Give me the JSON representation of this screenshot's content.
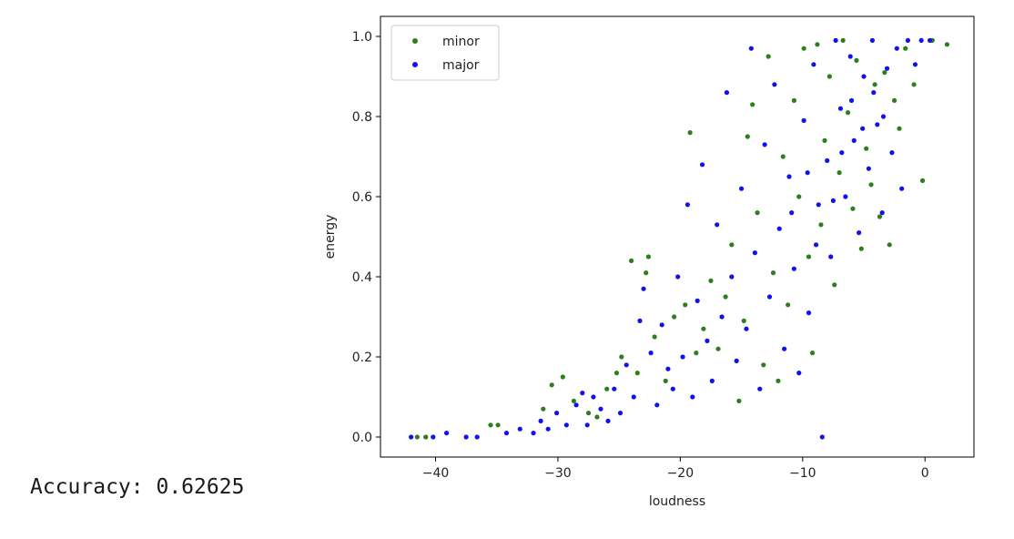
{
  "output": {
    "accuracy_label": "Accuracy:",
    "accuracy_value": "0.62625"
  },
  "chart_data": {
    "type": "scatter",
    "title": "",
    "xlabel": "loudness",
    "ylabel": "energy",
    "xlim": [
      -44.5,
      4
    ],
    "ylim": [
      -0.05,
      1.05
    ],
    "xticks": [
      -40,
      -30,
      -20,
      -10,
      0
    ],
    "xtick_labels": [
      "−40",
      "−30",
      "−20",
      "−10",
      "0"
    ],
    "yticks": [
      0.0,
      0.2,
      0.4,
      0.6,
      0.8,
      1.0
    ],
    "ytick_labels": [
      "0.0",
      "0.2",
      "0.4",
      "0.6",
      "0.8",
      "1.0"
    ],
    "grid": false,
    "legend_position": "upper-left",
    "series": [
      {
        "name": "minor",
        "color": "#2e7d1e",
        "points": [
          [
            -41.5,
            0.0
          ],
          [
            -40.8,
            0.0
          ],
          [
            -35.5,
            0.03
          ],
          [
            -34.9,
            0.03
          ],
          [
            -31.2,
            0.07
          ],
          [
            -30.5,
            0.13
          ],
          [
            -29.6,
            0.15
          ],
          [
            -28.7,
            0.09
          ],
          [
            -27.5,
            0.06
          ],
          [
            -26.8,
            0.05
          ],
          [
            -26.0,
            0.12
          ],
          [
            -25.2,
            0.16
          ],
          [
            -24.8,
            0.2
          ],
          [
            -24.0,
            0.44
          ],
          [
            -23.5,
            0.16
          ],
          [
            -22.8,
            0.41
          ],
          [
            -22.6,
            0.45
          ],
          [
            -22.1,
            0.25
          ],
          [
            -21.2,
            0.14
          ],
          [
            -20.5,
            0.3
          ],
          [
            -19.6,
            0.33
          ],
          [
            -19.2,
            0.76
          ],
          [
            -18.7,
            0.21
          ],
          [
            -18.1,
            0.27
          ],
          [
            -17.5,
            0.39
          ],
          [
            -16.9,
            0.22
          ],
          [
            -16.3,
            0.35
          ],
          [
            -15.8,
            0.48
          ],
          [
            -15.2,
            0.09
          ],
          [
            -14.8,
            0.29
          ],
          [
            -14.5,
            0.75
          ],
          [
            -14.1,
            0.83
          ],
          [
            -13.7,
            0.56
          ],
          [
            -13.2,
            0.18
          ],
          [
            -12.8,
            0.95
          ],
          [
            -12.4,
            0.41
          ],
          [
            -12.0,
            0.14
          ],
          [
            -11.6,
            0.7
          ],
          [
            -11.2,
            0.33
          ],
          [
            -10.7,
            0.84
          ],
          [
            -10.3,
            0.6
          ],
          [
            -9.9,
            0.97
          ],
          [
            -9.5,
            0.45
          ],
          [
            -9.2,
            0.21
          ],
          [
            -8.8,
            0.98
          ],
          [
            -8.5,
            0.53
          ],
          [
            -8.2,
            0.74
          ],
          [
            -7.8,
            0.9
          ],
          [
            -7.4,
            0.38
          ],
          [
            -7.0,
            0.66
          ],
          [
            -6.7,
            0.99
          ],
          [
            -6.3,
            0.81
          ],
          [
            -5.9,
            0.57
          ],
          [
            -5.6,
            0.94
          ],
          [
            -5.2,
            0.47
          ],
          [
            -4.8,
            0.72
          ],
          [
            -4.4,
            0.63
          ],
          [
            -4.1,
            0.88
          ],
          [
            -3.7,
            0.55
          ],
          [
            -3.3,
            0.91
          ],
          [
            -2.9,
            0.48
          ],
          [
            -2.5,
            0.84
          ],
          [
            -2.1,
            0.77
          ],
          [
            -1.6,
            0.97
          ],
          [
            -0.9,
            0.88
          ],
          [
            -0.2,
            0.64
          ],
          [
            0.6,
            0.99
          ],
          [
            1.8,
            0.98
          ]
        ]
      },
      {
        "name": "major",
        "color": "#1111ee",
        "points": [
          [
            -42.0,
            0.0
          ],
          [
            -40.2,
            0.0
          ],
          [
            -39.1,
            0.01
          ],
          [
            -37.5,
            0.0
          ],
          [
            -36.6,
            0.0
          ],
          [
            -34.2,
            0.01
          ],
          [
            -33.1,
            0.02
          ],
          [
            -32.0,
            0.01
          ],
          [
            -31.4,
            0.04
          ],
          [
            -30.8,
            0.02
          ],
          [
            -30.1,
            0.06
          ],
          [
            -29.3,
            0.03
          ],
          [
            -28.5,
            0.08
          ],
          [
            -28.0,
            0.11
          ],
          [
            -27.6,
            0.03
          ],
          [
            -27.1,
            0.1
          ],
          [
            -26.5,
            0.07
          ],
          [
            -25.9,
            0.04
          ],
          [
            -25.4,
            0.12
          ],
          [
            -24.9,
            0.06
          ],
          [
            -24.4,
            0.18
          ],
          [
            -23.8,
            0.1
          ],
          [
            -23.3,
            0.29
          ],
          [
            -23.0,
            0.37
          ],
          [
            -22.4,
            0.21
          ],
          [
            -21.9,
            0.08
          ],
          [
            -21.5,
            0.28
          ],
          [
            -21.0,
            0.17
          ],
          [
            -20.6,
            0.12
          ],
          [
            -20.2,
            0.4
          ],
          [
            -19.8,
            0.2
          ],
          [
            -19.4,
            0.58
          ],
          [
            -19.0,
            0.1
          ],
          [
            -18.6,
            0.34
          ],
          [
            -18.2,
            0.68
          ],
          [
            -17.8,
            0.24
          ],
          [
            -17.4,
            0.14
          ],
          [
            -17.0,
            0.53
          ],
          [
            -16.6,
            0.3
          ],
          [
            -16.2,
            0.86
          ],
          [
            -15.8,
            0.4
          ],
          [
            -15.4,
            0.19
          ],
          [
            -15.0,
            0.62
          ],
          [
            -14.6,
            0.27
          ],
          [
            -14.2,
            0.97
          ],
          [
            -13.9,
            0.46
          ],
          [
            -13.5,
            0.12
          ],
          [
            -13.1,
            0.73
          ],
          [
            -12.7,
            0.35
          ],
          [
            -12.3,
            0.88
          ],
          [
            -11.9,
            0.52
          ],
          [
            -11.5,
            0.22
          ],
          [
            -11.1,
            0.65
          ],
          [
            -10.7,
            0.42
          ],
          [
            -10.3,
            0.16
          ],
          [
            -9.9,
            0.79
          ],
          [
            -9.5,
            0.31
          ],
          [
            -9.1,
            0.93
          ],
          [
            -8.7,
            0.58
          ],
          [
            -8.4,
            0.0
          ],
          [
            -8.0,
            0.69
          ],
          [
            -7.7,
            0.45
          ],
          [
            -7.3,
            0.99
          ],
          [
            -6.9,
            0.82
          ],
          [
            -6.5,
            0.6
          ],
          [
            -6.1,
            0.95
          ],
          [
            -5.8,
            0.74
          ],
          [
            -5.4,
            0.51
          ],
          [
            -5.0,
            0.9
          ],
          [
            -4.6,
            0.67
          ],
          [
            -4.3,
            0.99
          ],
          [
            -3.9,
            0.78
          ],
          [
            -3.5,
            0.56
          ],
          [
            -3.1,
            0.92
          ],
          [
            -2.7,
            0.71
          ],
          [
            -2.3,
            0.97
          ],
          [
            -1.9,
            0.62
          ],
          [
            -1.4,
            0.99
          ],
          [
            -0.8,
            0.93
          ],
          [
            -0.3,
            0.99
          ],
          [
            0.4,
            0.99
          ],
          [
            -10.9,
            0.56
          ],
          [
            -9.6,
            0.66
          ],
          [
            -8.9,
            0.48
          ],
          [
            -7.5,
            0.59
          ],
          [
            -6.8,
            0.71
          ],
          [
            -6.0,
            0.84
          ],
          [
            -5.1,
            0.77
          ],
          [
            -4.2,
            0.86
          ],
          [
            -3.4,
            0.8
          ]
        ]
      }
    ]
  }
}
